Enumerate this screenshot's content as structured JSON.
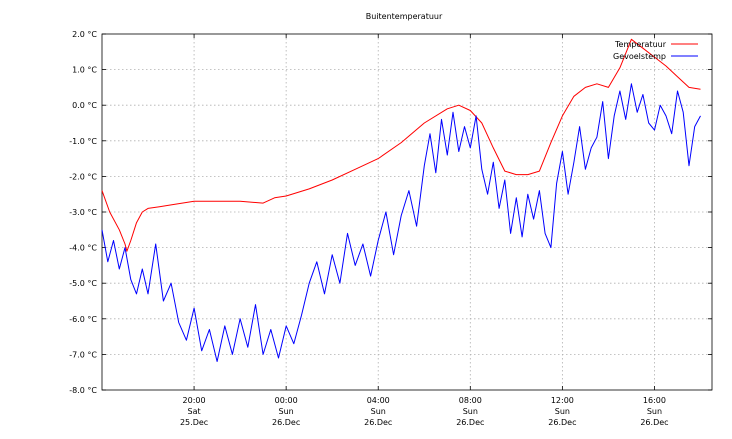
{
  "chart_data": {
    "type": "line",
    "title": "Buitentemperatuur",
    "xlabel": "",
    "ylabel": "",
    "y_unit": "°C",
    "ylim": [
      -8.0,
      2.0
    ],
    "yticks": [
      {
        "value": 2.0,
        "label": "2.0 °C"
      },
      {
        "value": 1.0,
        "label": "1.0 °C"
      },
      {
        "value": 0.0,
        "label": "0.0 °C"
      },
      {
        "value": -1.0,
        "label": "-1.0 °C"
      },
      {
        "value": -2.0,
        "label": "-2.0 °C"
      },
      {
        "value": -3.0,
        "label": "-3.0 °C"
      },
      {
        "value": -4.0,
        "label": "-4.0 °C"
      },
      {
        "value": -5.0,
        "label": "-5.0 °C"
      },
      {
        "value": -6.0,
        "label": "-6.0 °C"
      },
      {
        "value": -7.0,
        "label": "-7.0 °C"
      },
      {
        "value": -8.0,
        "label": "-8.0 °C"
      }
    ],
    "xlim": [
      "25 Dec 16:00",
      "26 Dec 18:30"
    ],
    "xticks": [
      {
        "time": "25 Dec 20:00",
        "label": "20:00",
        "day": "Sat",
        "date": "25.Dec"
      },
      {
        "time": "26 Dec 00:00",
        "label": "00:00",
        "day": "Sun",
        "date": "26.Dec"
      },
      {
        "time": "26 Dec 04:00",
        "label": "04:00",
        "day": "Sun",
        "date": "26.Dec"
      },
      {
        "time": "26 Dec 08:00",
        "label": "08:00",
        "day": "Sun",
        "date": "26.Dec"
      },
      {
        "time": "26 Dec 12:00",
        "label": "12:00",
        "day": "Sun",
        "date": "26.Dec"
      },
      {
        "time": "26 Dec 16:00",
        "label": "16:00",
        "day": "Sun",
        "date": "26.Dec"
      }
    ],
    "grid": true,
    "legend": "top-right",
    "series": [
      {
        "name": "Temperatuur",
        "color": "#ff0000",
        "points": [
          [
            "25 Dec 16:00",
            -2.4
          ],
          [
            "25 Dec 16:20",
            -3.0
          ],
          [
            "25 Dec 16:45",
            -3.5
          ],
          [
            "25 Dec 17:00",
            -3.9
          ],
          [
            "25 Dec 17:05",
            -4.1
          ],
          [
            "25 Dec 17:15",
            -3.8
          ],
          [
            "25 Dec 17:30",
            -3.3
          ],
          [
            "25 Dec 17:45",
            -3.0
          ],
          [
            "25 Dec 18:00",
            -2.9
          ],
          [
            "25 Dec 18:30",
            -2.85
          ],
          [
            "25 Dec 19:00",
            -2.8
          ],
          [
            "25 Dec 20:00",
            -2.7
          ],
          [
            "25 Dec 21:00",
            -2.7
          ],
          [
            "25 Dec 22:00",
            -2.7
          ],
          [
            "25 Dec 23:00",
            -2.75
          ],
          [
            "25 Dec 23:30",
            -2.6
          ],
          [
            "26 Dec 00:00",
            -2.55
          ],
          [
            "26 Dec 01:00",
            -2.35
          ],
          [
            "26 Dec 02:00",
            -2.1
          ],
          [
            "26 Dec 03:00",
            -1.8
          ],
          [
            "26 Dec 04:00",
            -1.5
          ],
          [
            "26 Dec 05:00",
            -1.05
          ],
          [
            "26 Dec 06:00",
            -0.5
          ],
          [
            "26 Dec 07:00",
            -0.1
          ],
          [
            "26 Dec 07:30",
            0.0
          ],
          [
            "26 Dec 08:00",
            -0.15
          ],
          [
            "26 Dec 08:30",
            -0.5
          ],
          [
            "26 Dec 09:00",
            -1.2
          ],
          [
            "26 Dec 09:30",
            -1.85
          ],
          [
            "26 Dec 10:00",
            -1.95
          ],
          [
            "26 Dec 10:30",
            -1.95
          ],
          [
            "26 Dec 11:00",
            -1.85
          ],
          [
            "26 Dec 11:30",
            -1.05
          ],
          [
            "26 Dec 12:00",
            -0.3
          ],
          [
            "26 Dec 12:30",
            0.25
          ],
          [
            "26 Dec 13:00",
            0.5
          ],
          [
            "26 Dec 13:30",
            0.6
          ],
          [
            "26 Dec 14:00",
            0.5
          ],
          [
            "26 Dec 14:30",
            1.05
          ],
          [
            "26 Dec 15:00",
            1.85
          ],
          [
            "26 Dec 15:30",
            1.6
          ],
          [
            "26 Dec 16:00",
            1.35
          ],
          [
            "26 Dec 16:30",
            1.1
          ],
          [
            "26 Dec 17:00",
            0.8
          ],
          [
            "26 Dec 17:30",
            0.5
          ],
          [
            "26 Dec 18:00",
            0.45
          ]
        ]
      },
      {
        "name": "Gevoelstemp",
        "color": "#0000ff",
        "points": [
          [
            "25 Dec 16:00",
            -3.5
          ],
          [
            "25 Dec 16:15",
            -4.4
          ],
          [
            "25 Dec 16:30",
            -3.8
          ],
          [
            "25 Dec 16:45",
            -4.6
          ],
          [
            "25 Dec 17:00",
            -4.0
          ],
          [
            "25 Dec 17:15",
            -4.9
          ],
          [
            "25 Dec 17:30",
            -5.3
          ],
          [
            "25 Dec 17:45",
            -4.6
          ],
          [
            "25 Dec 18:00",
            -5.3
          ],
          [
            "25 Dec 18:20",
            -3.9
          ],
          [
            "25 Dec 18:40",
            -5.5
          ],
          [
            "25 Dec 19:00",
            -5.0
          ],
          [
            "25 Dec 19:20",
            -6.1
          ],
          [
            "25 Dec 19:40",
            -6.6
          ],
          [
            "25 Dec 20:00",
            -5.7
          ],
          [
            "25 Dec 20:20",
            -6.9
          ],
          [
            "25 Dec 20:40",
            -6.3
          ],
          [
            "25 Dec 21:00",
            -7.2
          ],
          [
            "25 Dec 21:20",
            -6.2
          ],
          [
            "25 Dec 21:40",
            -7.0
          ],
          [
            "25 Dec 22:00",
            -6.0
          ],
          [
            "25 Dec 22:20",
            -6.8
          ],
          [
            "25 Dec 22:40",
            -5.6
          ],
          [
            "25 Dec 23:00",
            -7.0
          ],
          [
            "25 Dec 23:20",
            -6.3
          ],
          [
            "25 Dec 23:40",
            -7.1
          ],
          [
            "26 Dec 00:00",
            -6.2
          ],
          [
            "26 Dec 00:20",
            -6.7
          ],
          [
            "26 Dec 00:40",
            -5.9
          ],
          [
            "26 Dec 01:00",
            -5.0
          ],
          [
            "26 Dec 01:20",
            -4.4
          ],
          [
            "26 Dec 01:40",
            -5.3
          ],
          [
            "26 Dec 02:00",
            -4.2
          ],
          [
            "26 Dec 02:20",
            -5.0
          ],
          [
            "26 Dec 02:40",
            -3.6
          ],
          [
            "26 Dec 03:00",
            -4.5
          ],
          [
            "26 Dec 03:20",
            -3.9
          ],
          [
            "26 Dec 03:40",
            -4.8
          ],
          [
            "26 Dec 04:00",
            -3.8
          ],
          [
            "26 Dec 04:20",
            -3.0
          ],
          [
            "26 Dec 04:40",
            -4.2
          ],
          [
            "26 Dec 05:00",
            -3.1
          ],
          [
            "26 Dec 05:20",
            -2.4
          ],
          [
            "26 Dec 05:40",
            -3.4
          ],
          [
            "26 Dec 06:00",
            -1.7
          ],
          [
            "26 Dec 06:15",
            -0.8
          ],
          [
            "26 Dec 06:30",
            -1.9
          ],
          [
            "26 Dec 06:45",
            -0.4
          ],
          [
            "26 Dec 07:00",
            -1.4
          ],
          [
            "26 Dec 07:15",
            -0.2
          ],
          [
            "26 Dec 07:30",
            -1.3
          ],
          [
            "26 Dec 07:45",
            -0.6
          ],
          [
            "26 Dec 08:00",
            -1.2
          ],
          [
            "26 Dec 08:15",
            -0.3
          ],
          [
            "26 Dec 08:30",
            -1.8
          ],
          [
            "26 Dec 08:45",
            -2.5
          ],
          [
            "26 Dec 09:00",
            -1.6
          ],
          [
            "26 Dec 09:15",
            -2.9
          ],
          [
            "26 Dec 09:30",
            -2.1
          ],
          [
            "26 Dec 09:45",
            -3.6
          ],
          [
            "26 Dec 10:00",
            -2.6
          ],
          [
            "26 Dec 10:15",
            -3.7
          ],
          [
            "26 Dec 10:30",
            -2.5
          ],
          [
            "26 Dec 10:45",
            -3.2
          ],
          [
            "26 Dec 11:00",
            -2.4
          ],
          [
            "26 Dec 11:15",
            -3.6
          ],
          [
            "26 Dec 11:30",
            -4.0
          ],
          [
            "26 Dec 11:45",
            -2.2
          ],
          [
            "26 Dec 12:00",
            -1.3
          ],
          [
            "26 Dec 12:15",
            -2.5
          ],
          [
            "26 Dec 12:30",
            -1.6
          ],
          [
            "26 Dec 12:45",
            -0.6
          ],
          [
            "26 Dec 13:00",
            -1.8
          ],
          [
            "26 Dec 13:15",
            -1.2
          ],
          [
            "26 Dec 13:30",
            -0.9
          ],
          [
            "26 Dec 13:45",
            0.1
          ],
          [
            "26 Dec 14:00",
            -1.5
          ],
          [
            "26 Dec 14:15",
            -0.3
          ],
          [
            "26 Dec 14:30",
            0.4
          ],
          [
            "26 Dec 14:45",
            -0.4
          ],
          [
            "26 Dec 15:00",
            0.6
          ],
          [
            "26 Dec 15:15",
            -0.2
          ],
          [
            "26 Dec 15:30",
            0.3
          ],
          [
            "26 Dec 15:45",
            -0.5
          ],
          [
            "26 Dec 16:00",
            -0.7
          ],
          [
            "26 Dec 16:15",
            0.0
          ],
          [
            "26 Dec 16:30",
            -0.3
          ],
          [
            "26 Dec 16:45",
            -0.8
          ],
          [
            "26 Dec 17:00",
            0.4
          ],
          [
            "26 Dec 17:15",
            -0.2
          ],
          [
            "26 Dec 17:30",
            -1.7
          ],
          [
            "26 Dec 17:45",
            -0.6
          ],
          [
            "26 Dec 18:00",
            -0.3
          ]
        ]
      }
    ]
  }
}
